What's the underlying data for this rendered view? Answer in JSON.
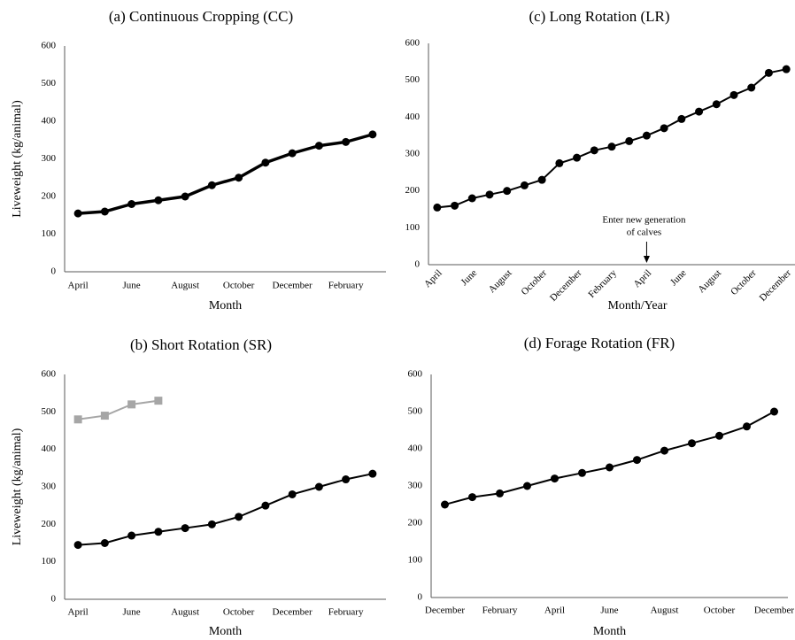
{
  "chart_data": [
    {
      "type": "line",
      "title": "(a) Continuous Cropping (CC)",
      "x_label": "Month",
      "y_label": "Liveweight (kg/animal)",
      "categories": [
        "April",
        null,
        "June",
        null,
        "August",
        null,
        "October",
        null,
        "December",
        null,
        "February",
        null
      ],
      "series": [
        {
          "color": "#000000",
          "marker": "circle",
          "values": [
            155,
            160,
            180,
            190,
            200,
            230,
            250,
            290,
            315,
            335,
            345,
            365
          ]
        }
      ],
      "ylim": [
        0,
        600
      ],
      "yticks": [
        0,
        100,
        200,
        300,
        400,
        500,
        600
      ],
      "grid": false
    },
    {
      "type": "line",
      "title": "(b) Short Rotation (SR)",
      "x_label": "Month",
      "y_label": "Liveweight (kg/animal)",
      "categories": [
        "April",
        null,
        "June",
        null,
        "August",
        null,
        "October",
        null,
        "December",
        null,
        "February",
        null
      ],
      "series": [
        {
          "color": "#000000",
          "marker": "circle",
          "values": [
            145,
            150,
            170,
            180,
            190,
            200,
            220,
            250,
            280,
            300,
            320,
            335
          ]
        },
        {
          "color": "#a6a6a6",
          "marker": "square",
          "values": [
            480,
            490,
            520,
            530,
            null,
            null,
            null,
            null,
            null,
            null,
            null,
            null
          ]
        }
      ],
      "ylim": [
        0,
        600
      ],
      "yticks": [
        0,
        100,
        200,
        300,
        400,
        500,
        600
      ],
      "grid": false
    },
    {
      "type": "line",
      "title": "(c) Long Rotation (LR)",
      "x_label": "Month/Year",
      "categories": [
        "April",
        null,
        "June",
        null,
        "August",
        null,
        "October",
        null,
        "December",
        null,
        "February",
        null,
        "April",
        null,
        "June",
        null,
        "August",
        null,
        "October",
        null,
        "December"
      ],
      "series": [
        {
          "color": "#000000",
          "marker": "circle",
          "values": [
            155,
            160,
            180,
            190,
            200,
            215,
            230,
            275,
            290,
            310,
            320,
            335,
            350,
            370,
            395,
            415,
            435,
            460,
            480,
            520,
            530
          ]
        }
      ],
      "ylim": [
        0,
        600
      ],
      "yticks": [
        0,
        100,
        200,
        300,
        400,
        500,
        600
      ],
      "grid": false,
      "annotation": [
        "Enter new generation",
        "of calves"
      ]
    },
    {
      "type": "line",
      "title": "(d) Forage Rotation (FR)",
      "x_label": "Month",
      "categories": [
        "December",
        null,
        "February",
        null,
        "April",
        null,
        "June",
        null,
        "August",
        null,
        "October",
        null,
        "December"
      ],
      "series": [
        {
          "color": "#000000",
          "marker": "circle",
          "values": [
            250,
            270,
            280,
            300,
            320,
            335,
            350,
            370,
            395,
            415,
            435,
            460,
            500
          ]
        }
      ],
      "ylim": [
        0,
        600
      ],
      "yticks": [
        0,
        100,
        200,
        300,
        400,
        500,
        600
      ],
      "grid": false
    }
  ]
}
